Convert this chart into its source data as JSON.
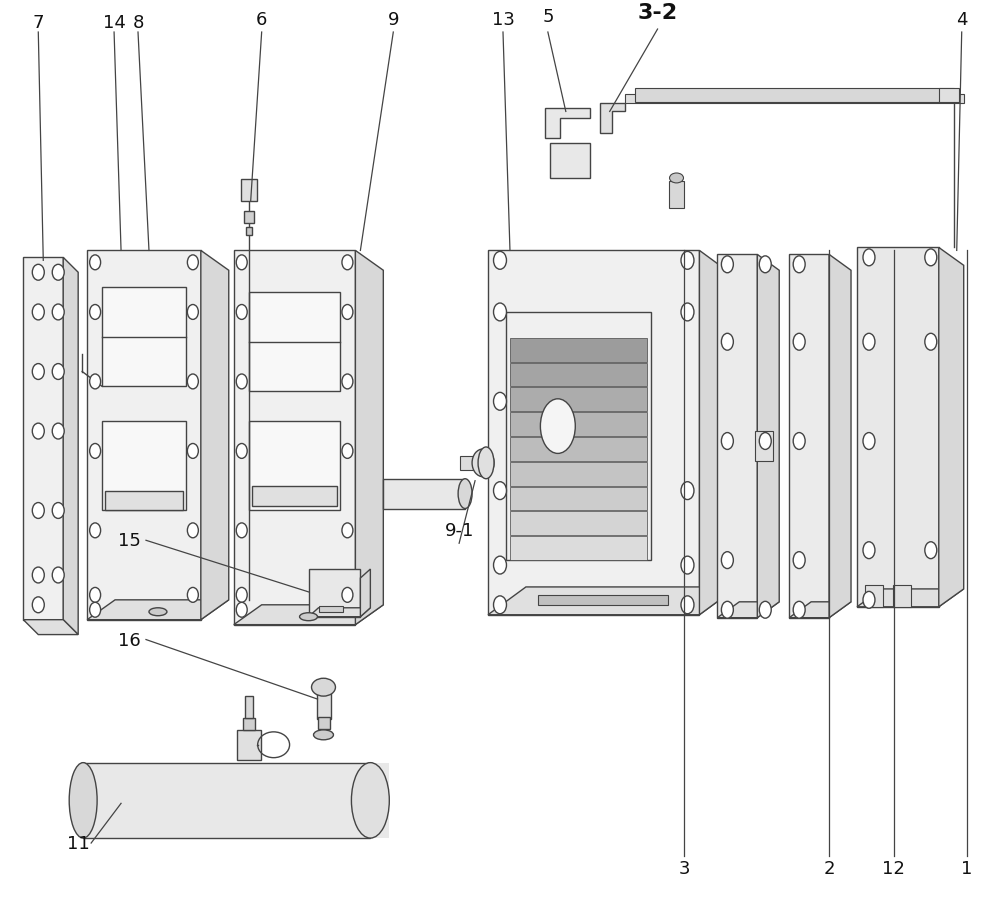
{
  "background_color": "#ffffff",
  "lc": "#555555",
  "lc_d": "#444444",
  "lw": 1.0,
  "fig_width": 10.0,
  "fig_height": 9.03
}
